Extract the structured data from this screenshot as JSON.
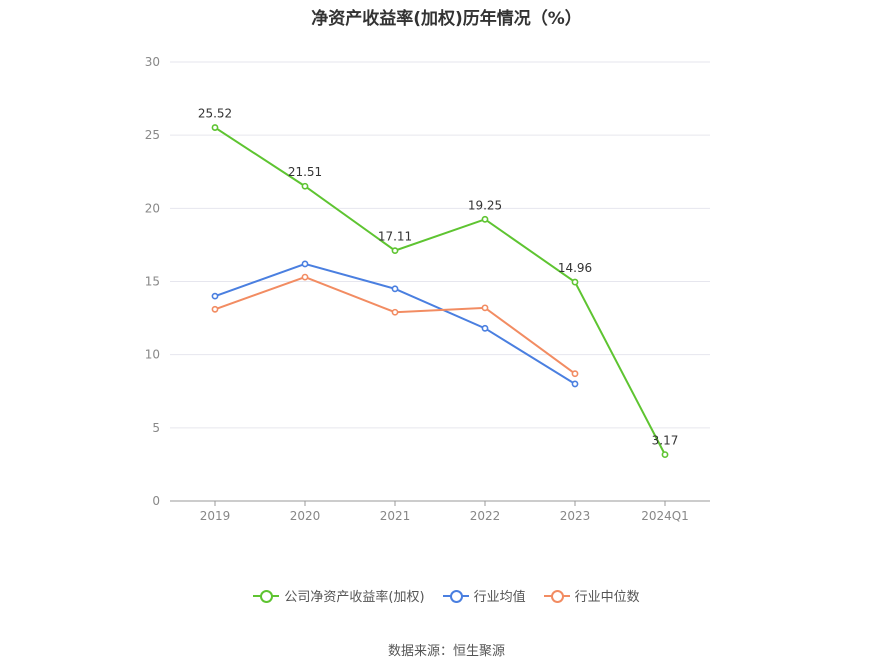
{
  "chart_data": {
    "type": "line",
    "title": "净资产收益率(加权)历年情况（%）",
    "categories": [
      "2019",
      "2020",
      "2021",
      "2022",
      "2023",
      "2024Q1"
    ],
    "ylim": [
      0,
      30
    ],
    "yticks": [
      0,
      5,
      10,
      15,
      20,
      25,
      30
    ],
    "grid": true,
    "legend_position": "bottom",
    "series": [
      {
        "name": "公司净资产收益率(加权)",
        "color": "#5ec431",
        "values": [
          25.52,
          21.51,
          17.11,
          19.25,
          14.96,
          3.17
        ],
        "labels": true
      },
      {
        "name": "行业均值",
        "color": "#4a7fe0",
        "values": [
          14.0,
          16.2,
          14.5,
          11.8,
          8.0,
          null
        ],
        "labels": false
      },
      {
        "name": "行业中位数",
        "color": "#f28c62",
        "values": [
          13.1,
          15.3,
          12.9,
          13.2,
          8.7,
          null
        ],
        "labels": false
      }
    ]
  },
  "source_text": "数据来源：恒生聚源"
}
